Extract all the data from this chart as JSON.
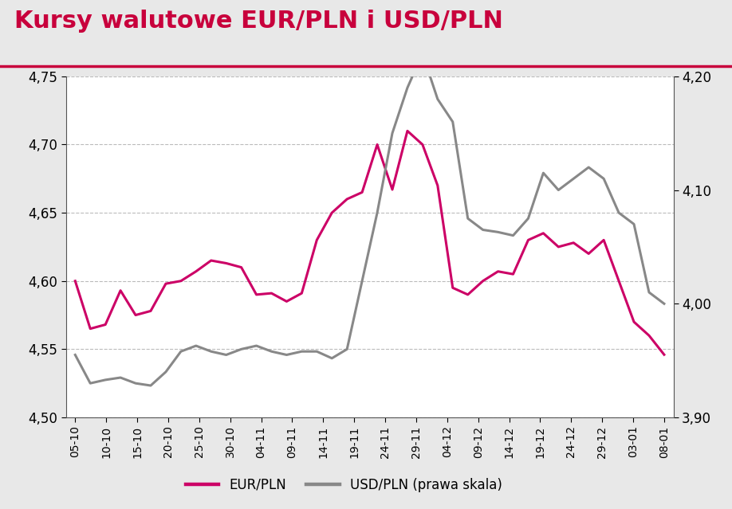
{
  "title": "Kursy walutowe EUR/PLN i USD/PLN",
  "title_color": "#C8003C",
  "fig_bg": "#e8e8e8",
  "plot_bg": "#ffffff",
  "x_labels": [
    "05-10",
    "10-10",
    "15-10",
    "20-10",
    "25-10",
    "30-10",
    "04-11",
    "09-11",
    "14-11",
    "19-11",
    "24-11",
    "29-11",
    "04-12",
    "09-12",
    "14-12",
    "19-12",
    "24-12",
    "29-12",
    "03-01",
    "08-01"
  ],
  "eurpln": [
    4.6,
    4.565,
    4.568,
    4.593,
    4.575,
    4.578,
    4.598,
    4.6,
    4.607,
    4.615,
    4.613,
    4.61,
    4.59,
    4.591,
    4.585,
    4.591,
    4.63,
    4.65,
    4.66,
    4.665,
    4.7,
    4.667,
    4.71,
    4.7,
    4.67,
    4.595,
    4.59,
    4.6,
    4.607,
    4.605,
    4.63,
    4.635,
    4.625,
    4.628,
    4.62,
    4.63,
    4.6,
    4.57,
    4.56,
    4.546
  ],
  "usdpln": [
    3.955,
    3.93,
    3.933,
    3.935,
    3.93,
    3.928,
    3.94,
    3.958,
    3.963,
    3.958,
    3.955,
    3.96,
    3.963,
    3.958,
    3.955,
    3.958,
    3.958,
    3.952,
    3.96,
    4.02,
    4.08,
    4.15,
    4.19,
    4.22,
    4.18,
    4.16,
    4.075,
    4.065,
    4.063,
    4.06,
    4.075,
    4.115,
    4.1,
    4.11,
    4.12,
    4.11,
    4.08,
    4.07,
    4.01,
    4.0
  ],
  "eurpln_color": "#CC0066",
  "usdpln_color": "#888888",
  "ylim_left": [
    4.5,
    4.75
  ],
  "ylim_right": [
    3.9,
    4.2
  ],
  "yticks_left": [
    4.5,
    4.55,
    4.6,
    4.65,
    4.7,
    4.75
  ],
  "yticks_right": [
    3.9,
    4.0,
    4.1,
    4.2
  ],
  "legend_eurpln": "EUR/PLN",
  "legend_usdpln": "USD/PLN (prawa skala)",
  "linewidth": 2.2,
  "grid_color": "#bbbbbb",
  "separator_color": "#C8003C",
  "title_fontsize": 22,
  "tick_fontsize": 12,
  "legend_fontsize": 12
}
